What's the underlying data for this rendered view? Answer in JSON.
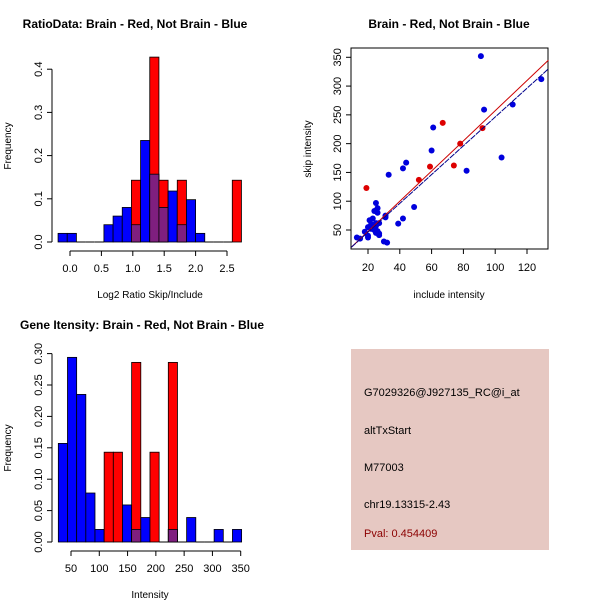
{
  "colors": {
    "brain": "#ff0000",
    "not_brain": "#0000ff",
    "overlap": "#7f1f7f",
    "panel_bg": "#e6c8c2",
    "pval": "#8b0000",
    "scatter_blue": "#0000dd",
    "scatter_red": "#dd0000"
  },
  "chart_data": [
    {
      "type": "bar",
      "title": "RatioData: Brain - Red, Not Brain - Blue",
      "xlabel": "Log2 Ratio Skip/Include",
      "ylabel": "Frequency",
      "bin_start": -0.19,
      "bin_width": 0.146,
      "xticks": [
        "0.0",
        "0.5",
        "1.0",
        "1.5",
        "2.0",
        "2.5"
      ],
      "xtick_values": [
        0,
        0.5,
        1,
        1.5,
        2,
        2.5
      ],
      "yticks": [
        "0.0",
        "0.1",
        "0.2",
        "0.3",
        "0.4"
      ],
      "ytick_values": [
        0,
        0.1,
        0.2,
        0.3,
        0.4
      ],
      "series": [
        {
          "name": "Not Brain",
          "color": "blue",
          "values": [
            0.02,
            0.02,
            0,
            0,
            0,
            0.04,
            0.06,
            0.08,
            0.04,
            0.235,
            0.157,
            0.08,
            0.118,
            0.04,
            0.098,
            0.02,
            0,
            0,
            0,
            0
          ]
        },
        {
          "name": "Brain",
          "color": "red",
          "values": [
            0,
            0,
            0,
            0,
            0,
            0,
            0,
            0,
            0.143,
            0,
            0.428,
            0.143,
            0,
            0.143,
            0,
            0,
            0,
            0,
            0,
            0.143
          ]
        }
      ]
    },
    {
      "type": "scatter",
      "title": "Brain - Red, Not Brain - Blue",
      "xlabel": "include intensity",
      "ylabel": "skip intensity",
      "xlim": [
        9.5,
        133.5
      ],
      "ylim": [
        17,
        366
      ],
      "xticks": [
        "20",
        "40",
        "60",
        "80",
        "100",
        "120"
      ],
      "xtick_values": [
        20,
        40,
        60,
        80,
        100,
        120
      ],
      "yticks": [
        "50",
        "100",
        "150",
        "200",
        "250",
        "300",
        "350"
      ],
      "ytick_values": [
        50,
        100,
        150,
        200,
        250,
        300,
        350
      ],
      "series": [
        {
          "name": "Not Brain",
          "color": "blue",
          "points": [
            [
              91,
              352
            ],
            [
              129,
              312
            ],
            [
              111,
              268
            ],
            [
              93,
              259
            ],
            [
              61,
              228
            ],
            [
              60,
              188
            ],
            [
              104,
              176
            ],
            [
              44,
              167
            ],
            [
              42,
              157
            ],
            [
              82,
              153
            ],
            [
              33,
              146
            ],
            [
              49,
              90
            ],
            [
              25,
              97
            ],
            [
              26,
              88
            ],
            [
              24,
              83
            ],
            [
              26,
              80
            ],
            [
              21,
              67
            ],
            [
              23,
              70
            ],
            [
              22,
              60
            ],
            [
              25,
              62
            ],
            [
              27,
              62
            ],
            [
              20,
              55
            ],
            [
              22,
              52
            ],
            [
              24,
              50
            ],
            [
              26,
              48
            ],
            [
              18,
              47
            ],
            [
              25,
              45
            ],
            [
              27,
              44
            ],
            [
              27,
              41
            ],
            [
              20,
              40
            ],
            [
              20,
              37
            ],
            [
              13,
              37
            ],
            [
              31,
              72
            ],
            [
              31,
              75
            ],
            [
              42,
              70
            ],
            [
              39,
              61
            ],
            [
              30,
              30
            ],
            [
              32,
              28
            ],
            [
              15,
              35
            ],
            [
              23,
              55
            ],
            [
              25,
              57
            ]
          ]
        },
        {
          "name": "Brain",
          "color": "red",
          "points": [
            [
              19,
              123
            ],
            [
              52,
              137
            ],
            [
              59,
              160
            ],
            [
              67,
              236
            ],
            [
              74,
              162
            ],
            [
              78,
              200
            ],
            [
              92,
              227
            ]
          ]
        }
      ],
      "fit_lines": [
        {
          "name": "Brain fit",
          "color": "red",
          "from": [
            9.5,
            20
          ],
          "to": [
            133.5,
            345
          ]
        },
        {
          "name": "Not Brain fit",
          "color": "blue",
          "from": [
            9.5,
            20
          ],
          "to": [
            133.5,
            330
          ]
        }
      ]
    },
    {
      "type": "bar",
      "title": "Gene Itensity: Brain - Red, Not Brain - Blue",
      "xlabel": "Intensity",
      "ylabel": "Frequency",
      "bin_start": 27.6,
      "bin_width": 16.2,
      "xticks": [
        "50",
        "100",
        "150",
        "200",
        "250",
        "300",
        "350"
      ],
      "xtick_values": [
        50,
        100,
        150,
        200,
        250,
        300,
        350
      ],
      "yticks": [
        "0.00",
        "0.05",
        "0.10",
        "0.15",
        "0.20",
        "0.25",
        "0.30"
      ],
      "ytick_values": [
        0,
        0.05,
        0.1,
        0.15,
        0.2,
        0.25,
        0.3
      ],
      "series": [
        {
          "name": "Not Brain",
          "color": "blue",
          "values": [
            0.157,
            0.294,
            0.235,
            0.078,
            0.02,
            0,
            0,
            0.059,
            0.02,
            0.039,
            0,
            0,
            0.02,
            0,
            0.039,
            0,
            0,
            0.02,
            0,
            0.02
          ]
        },
        {
          "name": "Brain",
          "color": "red",
          "values": [
            0,
            0,
            0,
            0,
            0,
            0.143,
            0.143,
            0,
            0.286,
            0,
            0.143,
            0,
            0.286,
            0,
            0,
            0,
            0,
            0,
            0,
            0
          ]
        }
      ]
    }
  ],
  "info": {
    "probe": "G7029326@J927135_RC@i_at",
    "event": "altTxStart",
    "accession": "M77003",
    "location": "chr19.13315-2.43",
    "pval": "Pval: 0.454409"
  }
}
